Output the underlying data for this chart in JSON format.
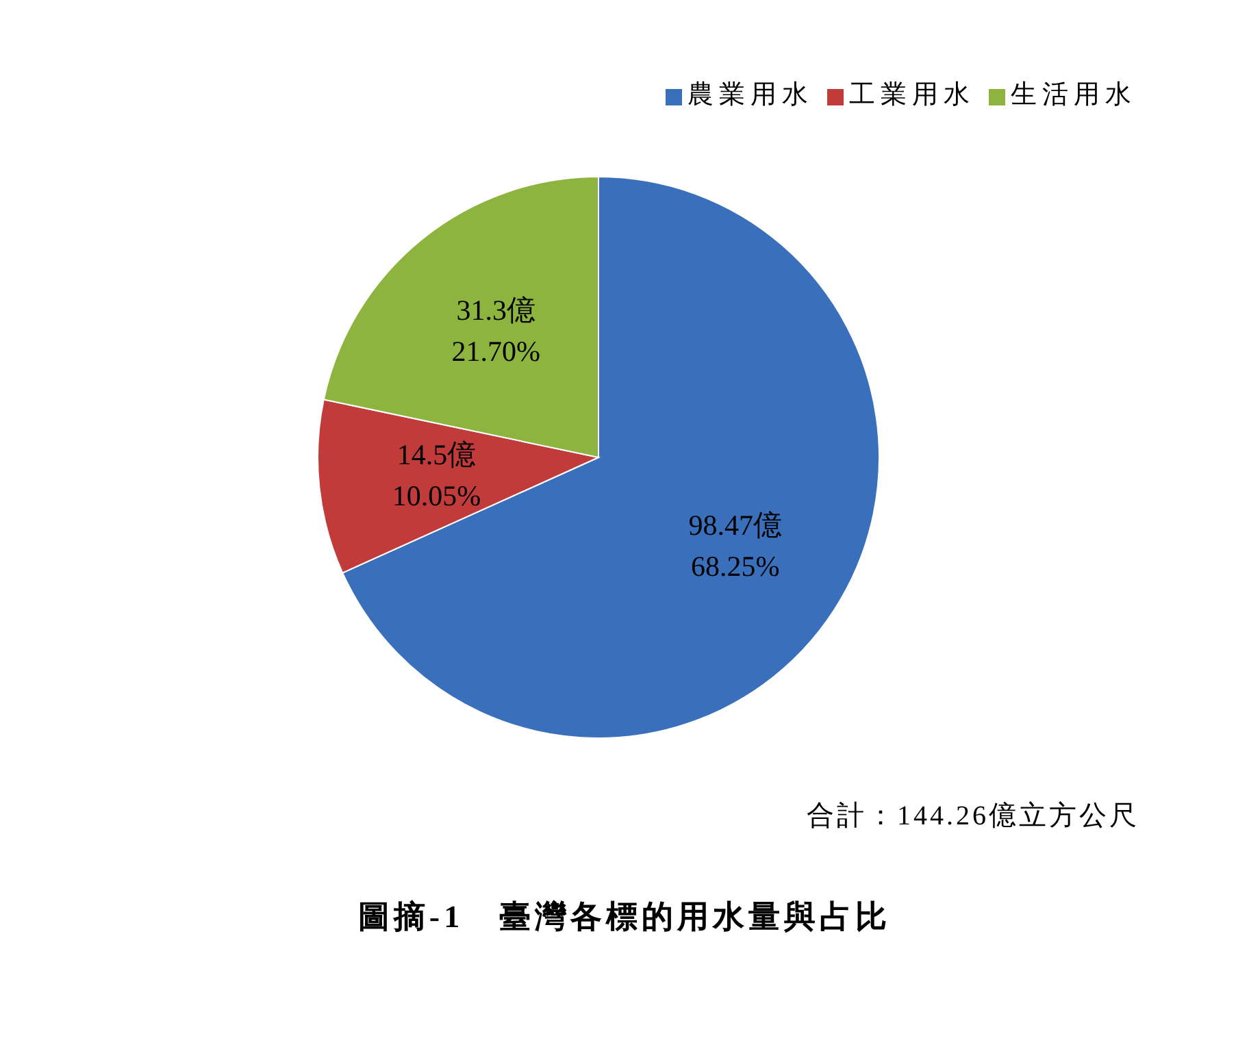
{
  "chart_data": {
    "type": "pie",
    "categories": [
      "農業用水",
      "工業用水",
      "生活用水"
    ],
    "values": [
      98.47,
      14.5,
      31.3
    ],
    "colors": [
      "#3a70bb",
      "#c23b3b",
      "#8db43f"
    ],
    "value_labels": [
      "98.47億\n68.25%",
      "14.5億\n10.05%",
      "31.3億\n21.70%"
    ],
    "legend": "top right",
    "annotations": [
      "合計：144.26億立方公尺",
      "圖摘-1　臺灣各標的用水量與占比"
    ]
  }
}
